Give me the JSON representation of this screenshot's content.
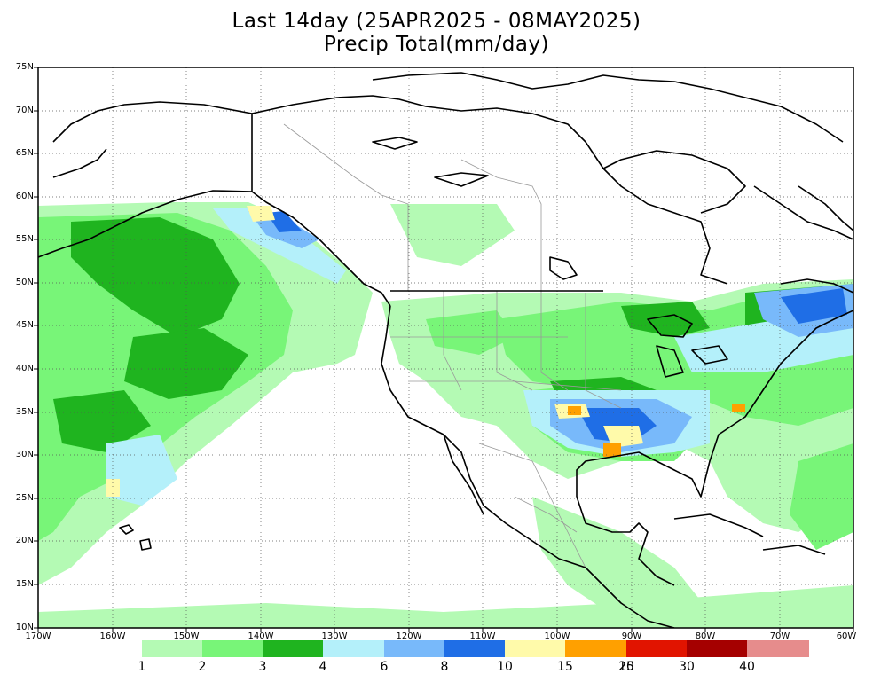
{
  "title": {
    "line1": "Last 14day (25APR2025 - 08MAY2025)",
    "line2": "Precip Total(mm/day)"
  },
  "map": {
    "lat_ticks": [
      "75N",
      "70N",
      "65N",
      "60N",
      "55N",
      "50N",
      "45N",
      "40N",
      "35N",
      "30N",
      "25N",
      "20N",
      "15N",
      "10N"
    ],
    "lon_ticks": [
      "170W",
      "160W",
      "150W",
      "140W",
      "130W",
      "120W",
      "110W",
      "100W",
      "90W",
      "80W",
      "70W",
      "60W"
    ],
    "grid": "dotted"
  },
  "colorbar": {
    "labels": [
      "1",
      "2",
      "3",
      "4",
      "6",
      "8",
      "10",
      "15",
      "20",
      "30",
      "40"
    ],
    "colors": [
      "#b4fab4",
      "#78f578",
      "#1fb41f",
      "#b4f0fa",
      "#78b9fa",
      "#1f6ee6",
      "#fffaaa",
      "#ffa000",
      "#e11400",
      "#a50000",
      "#e68c8c"
    ]
  }
}
